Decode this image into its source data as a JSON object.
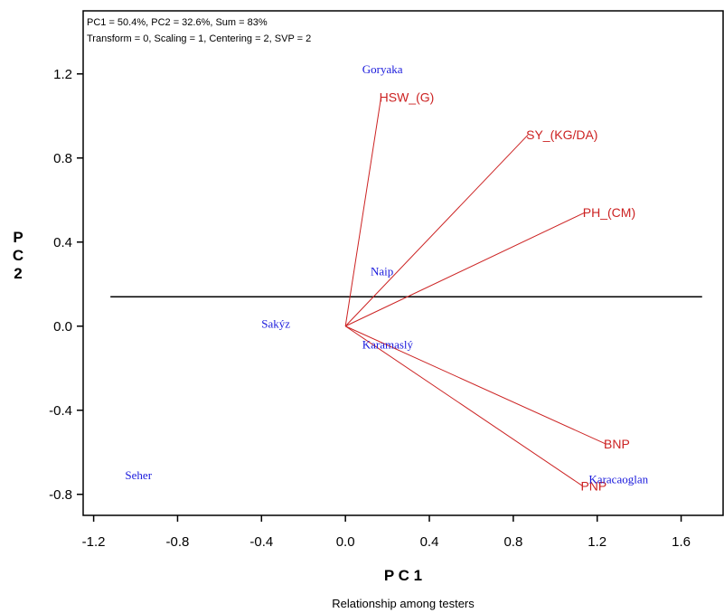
{
  "chart_data": {
    "type": "scatter",
    "info_lines": [
      "PC1 = 50.4%, PC2 = 32.6%, Sum = 83%",
      "Transform = 0, Scaling = 1, Centering = 2, SVP = 2"
    ],
    "xlabel": "P C 1",
    "ylabel": "P C 2",
    "caption": "Relationship among testers",
    "xlim": [
      -1.25,
      1.8
    ],
    "ylim": [
      -0.9,
      1.5
    ],
    "x_ticks": [
      -1.2,
      -0.8,
      -0.4,
      0.0,
      0.4,
      0.8,
      1.2,
      1.6
    ],
    "y_ticks": [
      -0.8,
      -0.4,
      0.0,
      0.4,
      0.8,
      1.2
    ],
    "x_tick_labels": [
      "-1.2",
      "-0.8",
      "-0.4",
      "0.0",
      "0.4",
      "0.8",
      "1.2",
      "1.6"
    ],
    "y_tick_labels": [
      "-0.8",
      "-0.4",
      "0.0",
      "0.4",
      "0.8",
      "1.2"
    ],
    "reference_line": {
      "x1": -1.12,
      "y1": 0.14,
      "x2": 1.7,
      "y2": 0.14
    },
    "variables": [
      {
        "label": "HSW_(G)",
        "x": 0.17,
        "y": 1.09
      },
      {
        "label": "SY_(KG/DA)",
        "x": 0.87,
        "y": 0.91
      },
      {
        "label": "PH_(CM)",
        "x": 1.14,
        "y": 0.54
      },
      {
        "label": "BNP",
        "x": 1.24,
        "y": -0.56
      },
      {
        "label": "PNP",
        "x": 1.13,
        "y": -0.76
      }
    ],
    "genotypes": [
      {
        "label": "Goryaka",
        "x": 0.08,
        "y": 1.22
      },
      {
        "label": "Naip",
        "x": 0.12,
        "y": 0.26
      },
      {
        "label": "Sakýz",
        "x": -0.4,
        "y": 0.01
      },
      {
        "label": "Karamaslý",
        "x": 0.08,
        "y": -0.09
      },
      {
        "label": "Seher",
        "x": -1.05,
        "y": -0.71
      },
      {
        "label": "Karacaoglan",
        "x": 1.16,
        "y": -0.73
      }
    ],
    "colors": {
      "variable": "#cc2222",
      "genotype": "#1a1adc",
      "axis": "#000000"
    }
  }
}
